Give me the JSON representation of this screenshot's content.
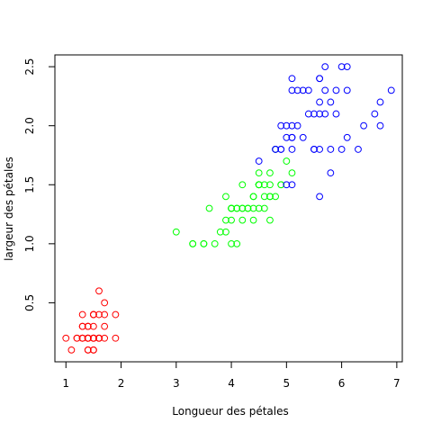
{
  "chart_data": {
    "type": "scatter",
    "title": "",
    "xlabel": "Longueur des pétales",
    "ylabel": "largeur des pétales",
    "xlim": [
      0.8,
      7.1
    ],
    "ylim": [
      0.0,
      2.6
    ],
    "xticks": [
      1,
      2,
      3,
      4,
      5,
      6,
      7
    ],
    "yticks": [
      0.5,
      1.0,
      1.5,
      2.0,
      2.5
    ],
    "xtick_labels": [
      "1",
      "2",
      "3",
      "4",
      "5",
      "6",
      "7"
    ],
    "ytick_labels": [
      "0.5",
      "1.0",
      "1.5",
      "2.0",
      "2.5"
    ],
    "grid": false,
    "series": [
      {
        "color": "#ff0000",
        "points": [
          [
            1.4,
            0.2
          ],
          [
            1.4,
            0.2
          ],
          [
            1.3,
            0.2
          ],
          [
            1.5,
            0.2
          ],
          [
            1.4,
            0.2
          ],
          [
            1.7,
            0.4
          ],
          [
            1.4,
            0.3
          ],
          [
            1.5,
            0.2
          ],
          [
            1.4,
            0.2
          ],
          [
            1.5,
            0.1
          ],
          [
            1.5,
            0.2
          ],
          [
            1.6,
            0.2
          ],
          [
            1.4,
            0.1
          ],
          [
            1.1,
            0.1
          ],
          [
            1.2,
            0.2
          ],
          [
            1.5,
            0.4
          ],
          [
            1.3,
            0.4
          ],
          [
            1.4,
            0.3
          ],
          [
            1.7,
            0.3
          ],
          [
            1.5,
            0.3
          ],
          [
            1.7,
            0.2
          ],
          [
            1.5,
            0.4
          ],
          [
            1.0,
            0.2
          ],
          [
            1.7,
            0.5
          ],
          [
            1.9,
            0.2
          ],
          [
            1.6,
            0.2
          ],
          [
            1.6,
            0.4
          ],
          [
            1.5,
            0.2
          ],
          [
            1.4,
            0.2
          ],
          [
            1.6,
            0.2
          ],
          [
            1.6,
            0.2
          ],
          [
            1.5,
            0.4
          ],
          [
            1.5,
            0.1
          ],
          [
            1.4,
            0.2
          ],
          [
            1.5,
            0.2
          ],
          [
            1.2,
            0.2
          ],
          [
            1.3,
            0.2
          ],
          [
            1.4,
            0.1
          ],
          [
            1.3,
            0.2
          ],
          [
            1.5,
            0.2
          ],
          [
            1.3,
            0.3
          ],
          [
            1.3,
            0.3
          ],
          [
            1.3,
            0.2
          ],
          [
            1.6,
            0.6
          ],
          [
            1.9,
            0.4
          ],
          [
            1.4,
            0.3
          ],
          [
            1.6,
            0.2
          ],
          [
            1.4,
            0.2
          ],
          [
            1.5,
            0.2
          ],
          [
            1.4,
            0.2
          ]
        ]
      },
      {
        "color": "#00ff00",
        "points": [
          [
            4.7,
            1.4
          ],
          [
            4.5,
            1.5
          ],
          [
            4.9,
            1.5
          ],
          [
            4.0,
            1.3
          ],
          [
            4.6,
            1.5
          ],
          [
            4.5,
            1.3
          ],
          [
            4.7,
            1.6
          ],
          [
            3.3,
            1.0
          ],
          [
            4.6,
            1.3
          ],
          [
            3.9,
            1.4
          ],
          [
            3.5,
            1.0
          ],
          [
            4.2,
            1.5
          ],
          [
            4.0,
            1.0
          ],
          [
            4.7,
            1.4
          ],
          [
            3.6,
            1.3
          ],
          [
            4.4,
            1.4
          ],
          [
            4.5,
            1.5
          ],
          [
            4.1,
            1.0
          ],
          [
            4.5,
            1.5
          ],
          [
            3.9,
            1.1
          ],
          [
            4.8,
            1.8
          ],
          [
            4.0,
            1.3
          ],
          [
            4.9,
            1.5
          ],
          [
            4.7,
            1.2
          ],
          [
            4.3,
            1.3
          ],
          [
            4.4,
            1.4
          ],
          [
            4.8,
            1.4
          ],
          [
            5.0,
            1.7
          ],
          [
            4.5,
            1.5
          ],
          [
            3.5,
            1.0
          ],
          [
            3.8,
            1.1
          ],
          [
            3.7,
            1.0
          ],
          [
            3.9,
            1.2
          ],
          [
            5.1,
            1.6
          ],
          [
            4.5,
            1.5
          ],
          [
            4.5,
            1.6
          ],
          [
            4.7,
            1.5
          ],
          [
            4.4,
            1.3
          ],
          [
            4.1,
            1.3
          ],
          [
            4.0,
            1.3
          ],
          [
            4.4,
            1.2
          ],
          [
            4.6,
            1.4
          ],
          [
            4.0,
            1.2
          ],
          [
            3.3,
            1.0
          ],
          [
            4.2,
            1.3
          ],
          [
            4.2,
            1.2
          ],
          [
            4.2,
            1.3
          ],
          [
            4.3,
            1.3
          ],
          [
            3.0,
            1.1
          ],
          [
            4.1,
            1.3
          ]
        ]
      },
      {
        "color": "#0000ff",
        "points": [
          [
            6.0,
            2.5
          ],
          [
            5.1,
            1.9
          ],
          [
            5.9,
            2.1
          ],
          [
            5.6,
            1.8
          ],
          [
            5.8,
            2.2
          ],
          [
            6.6,
            2.1
          ],
          [
            4.5,
            1.7
          ],
          [
            6.3,
            1.8
          ],
          [
            5.8,
            1.8
          ],
          [
            6.1,
            2.5
          ],
          [
            5.1,
            2.0
          ],
          [
            5.3,
            1.9
          ],
          [
            5.5,
            2.1
          ],
          [
            5.0,
            2.0
          ],
          [
            5.1,
            2.4
          ],
          [
            5.3,
            2.3
          ],
          [
            5.5,
            1.8
          ],
          [
            6.7,
            2.2
          ],
          [
            6.9,
            2.3
          ],
          [
            5.0,
            1.5
          ],
          [
            5.7,
            2.3
          ],
          [
            4.9,
            2.0
          ],
          [
            6.7,
            2.0
          ],
          [
            4.9,
            1.8
          ],
          [
            5.7,
            2.1
          ],
          [
            6.0,
            1.8
          ],
          [
            4.8,
            1.8
          ],
          [
            4.9,
            1.8
          ],
          [
            5.6,
            2.1
          ],
          [
            5.8,
            1.6
          ],
          [
            6.1,
            1.9
          ],
          [
            6.4,
            2.0
          ],
          [
            5.6,
            2.2
          ],
          [
            5.1,
            1.5
          ],
          [
            5.6,
            1.4
          ],
          [
            6.1,
            2.3
          ],
          [
            5.6,
            2.4
          ],
          [
            5.5,
            1.8
          ],
          [
            4.8,
            1.8
          ],
          [
            5.4,
            2.1
          ],
          [
            5.6,
            2.4
          ],
          [
            5.1,
            2.3
          ],
          [
            5.1,
            1.9
          ],
          [
            5.9,
            2.3
          ],
          [
            5.7,
            2.5
          ],
          [
            5.2,
            2.3
          ],
          [
            5.0,
            1.9
          ],
          [
            5.2,
            2.0
          ],
          [
            5.4,
            2.3
          ],
          [
            5.1,
            1.8
          ]
        ]
      }
    ]
  }
}
